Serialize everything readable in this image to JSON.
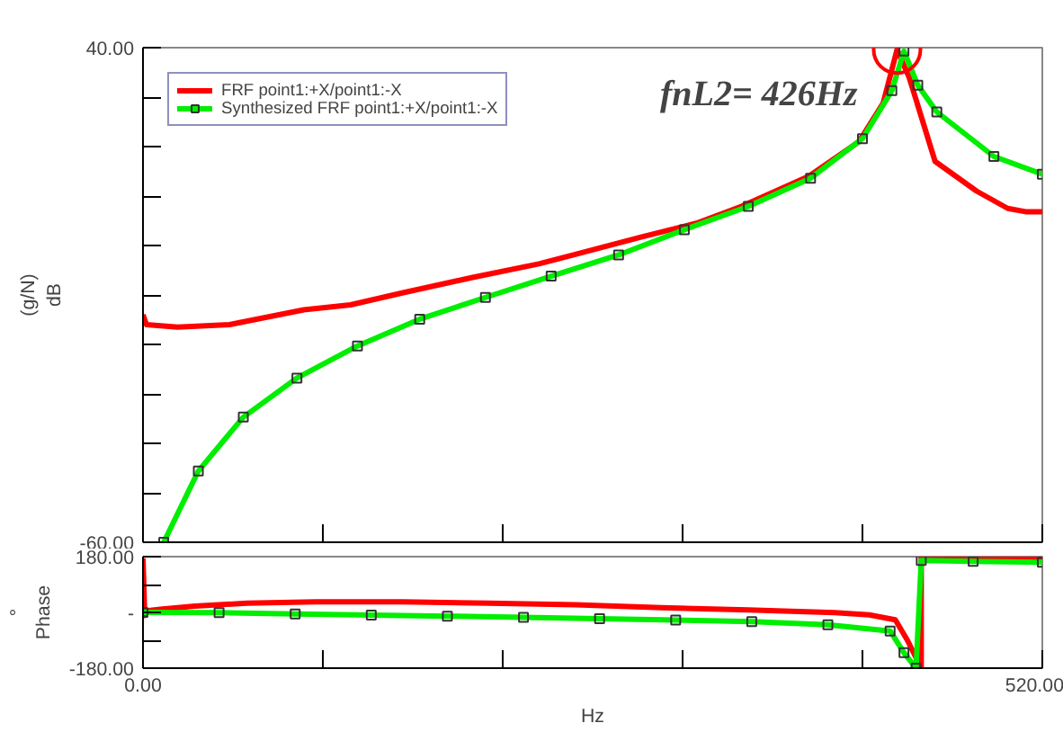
{
  "chart_data": [
    {
      "type": "line",
      "ylabel": "(g/N)\ndB",
      "xlim": [
        0,
        520
      ],
      "ylim": [
        -60,
        40
      ],
      "xticks": [
        {
          "value": 0,
          "label": null
        },
        {
          "value": 104,
          "label": null
        },
        {
          "value": 208,
          "label": null
        },
        {
          "value": 312,
          "label": null
        },
        {
          "value": 416,
          "label": null
        },
        {
          "value": 520,
          "label": null
        }
      ],
      "yticks": [
        {
          "value": -60,
          "label": "-60.00"
        },
        {
          "value": -50,
          "label": null
        },
        {
          "value": -40,
          "label": null
        },
        {
          "value": -30,
          "label": null
        },
        {
          "value": -20,
          "label": null
        },
        {
          "value": -10,
          "label": null
        },
        {
          "value": 0,
          "label": null
        },
        {
          "value": 10,
          "label": null
        },
        {
          "value": 20,
          "label": null
        },
        {
          "value": 30,
          "label": null
        },
        {
          "value": 40,
          "label": "40.00"
        }
      ],
      "tick_labels": "y",
      "grid": false,
      "legend": "top left",
      "annotations": [
        {
          "text": "fnL2= 426Hz",
          "x": 436,
          "y": 39.6
        }
      ],
      "series": [
        {
          "name": "FRF point1:+X/point1:-X",
          "color": "#ff0000",
          "marker": "none",
          "x": [
            0,
            2,
            20,
            50,
            93,
            120,
            151,
            190,
            229,
            249,
            288,
            320,
            346,
            385,
            414,
            428,
            436,
            443,
            458,
            482,
            500,
            511,
            520
          ],
          "values": [
            -14,
            -16,
            -16.5,
            -16,
            -13,
            -12,
            -9.5,
            -6.5,
            -3.7,
            -1.9,
            1.7,
            4.5,
            7.9,
            14,
            21,
            28.8,
            39.6,
            34,
            17,
            11,
            7.5,
            6.8,
            6.8
          ]
        },
        {
          "name": "Synthesized FRF point1:+X/point1:-X",
          "color": "#00ee00",
          "marker": "square",
          "x": [
            12,
            32,
            58,
            89,
            124,
            160,
            198,
            236,
            275,
            313,
            350,
            386,
            416,
            433,
            440,
            448,
            459,
            492,
            520
          ],
          "values": [
            -60,
            -45.6,
            -34.7,
            -26.8,
            -20.3,
            -14.9,
            -10.5,
            -6.2,
            -1.9,
            3.2,
            7.9,
            13.6,
            21.6,
            31.3,
            39.3,
            32.4,
            27,
            18,
            14.4
          ]
        }
      ]
    },
    {
      "type": "line",
      "xlabel": "Hz",
      "ylabel": "°\nPhase",
      "xlim": [
        0,
        520
      ],
      "ylim": [
        -180,
        180
      ],
      "xticks": [
        {
          "value": 0,
          "label": "0.00"
        },
        {
          "value": 104,
          "label": null
        },
        {
          "value": 208,
          "label": null
        },
        {
          "value": 312,
          "label": null
        },
        {
          "value": 416,
          "label": null
        },
        {
          "value": 520,
          "label": "520.00"
        }
      ],
      "yticks": [
        {
          "value": -180,
          "label": "-180.00"
        },
        {
          "value": -90,
          "label": null
        },
        {
          "value": 0,
          "label": "-"
        },
        {
          "value": 90,
          "label": null
        },
        {
          "value": 180,
          "label": "180.00"
        }
      ],
      "grid": false,
      "legend": false,
      "series": [
        {
          "color": "#ff0000",
          "marker": "none",
          "x": [
            0,
            1,
            2,
            10,
            30,
            60,
            100,
            150,
            200,
            250,
            300,
            350,
            400,
            420,
            435,
            442,
            450,
            450,
            470,
            500,
            520
          ],
          "values": [
            175,
            -10,
            5,
            10,
            20,
            30,
            34,
            34,
            30,
            25,
            15,
            8,
            -1,
            -8,
            -24,
            -90,
            -180,
            180,
            180,
            178,
            176
          ]
        },
        {
          "color": "#00ee00",
          "marker": "square",
          "x": [
            0,
            44,
            88,
            132,
            176,
            220,
            264,
            308,
            352,
            396,
            432,
            440,
            447,
            450,
            480,
            520
          ],
          "values": [
            0,
            -1,
            -5,
            -9,
            -12,
            -16,
            -20,
            -25,
            -30,
            -40,
            -60,
            -130,
            -180,
            168,
            165,
            162
          ]
        }
      ]
    }
  ]
}
